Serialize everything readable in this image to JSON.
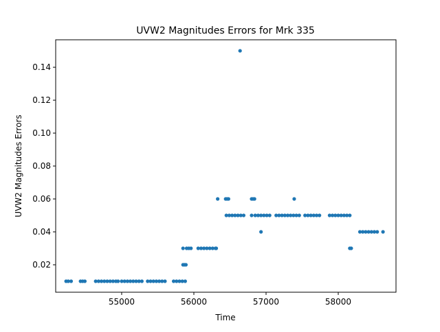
{
  "chart_data": {
    "type": "scatter",
    "title": "UVW2 Magnitudes Errors for Mrk 335",
    "x_label": "Time",
    "y_label": "UVW2 Magnitudes Errors",
    "color": "#1f77b4",
    "x": [
      54230,
      54260,
      54300,
      54430,
      54460,
      54490,
      54640,
      54680,
      54720,
      54760,
      54800,
      54840,
      54880,
      54920,
      54950,
      55000,
      55040,
      55080,
      55120,
      55160,
      55200,
      55240,
      55280,
      55360,
      55400,
      55440,
      55480,
      55520,
      55560,
      55600,
      55720,
      55760,
      55800,
      55840,
      55880,
      55850,
      55870,
      55890,
      55850,
      55900,
      55930,
      55960,
      56060,
      56100,
      56140,
      56180,
      56220,
      56260,
      56300,
      56310,
      56330,
      56440,
      56460,
      56480,
      56800,
      56820,
      56840,
      57390,
      56450,
      56490,
      56530,
      56570,
      56610,
      56650,
      56690,
      56800,
      56850,
      56890,
      56930,
      56970,
      57010,
      57050,
      57140,
      57180,
      57220,
      57260,
      57300,
      57340,
      57380,
      57420,
      57460,
      57540,
      57580,
      57620,
      57660,
      57700,
      57740,
      57880,
      57920,
      57960,
      58000,
      58040,
      58080,
      58120,
      58160,
      56930,
      58300,
      58340,
      58380,
      58420,
      58460,
      58500,
      58540,
      58620,
      58160,
      58180,
      56640
    ],
    "values": [
      0.01,
      0.01,
      0.01,
      0.01,
      0.01,
      0.01,
      0.01,
      0.01,
      0.01,
      0.01,
      0.01,
      0.01,
      0.01,
      0.01,
      0.01,
      0.01,
      0.01,
      0.01,
      0.01,
      0.01,
      0.01,
      0.01,
      0.01,
      0.01,
      0.01,
      0.01,
      0.01,
      0.01,
      0.01,
      0.01,
      0.01,
      0.01,
      0.01,
      0.01,
      0.01,
      0.02,
      0.02,
      0.02,
      0.03,
      0.03,
      0.03,
      0.03,
      0.03,
      0.03,
      0.03,
      0.03,
      0.03,
      0.03,
      0.03,
      0.03,
      0.06,
      0.06,
      0.06,
      0.06,
      0.06,
      0.06,
      0.06,
      0.06,
      0.05,
      0.05,
      0.05,
      0.05,
      0.05,
      0.05,
      0.05,
      0.05,
      0.05,
      0.05,
      0.05,
      0.05,
      0.05,
      0.05,
      0.05,
      0.05,
      0.05,
      0.05,
      0.05,
      0.05,
      0.05,
      0.05,
      0.05,
      0.05,
      0.05,
      0.05,
      0.05,
      0.05,
      0.05,
      0.05,
      0.05,
      0.05,
      0.05,
      0.05,
      0.05,
      0.05,
      0.05,
      0.04,
      0.04,
      0.04,
      0.04,
      0.04,
      0.04,
      0.04,
      0.04,
      0.04,
      0.03,
      0.03,
      0.15
    ],
    "xlim": [
      54086,
      58800
    ],
    "xticks": [
      55000,
      56000,
      57000,
      58000
    ],
    "ylim": [
      0.00333,
      0.1567
    ],
    "yticks": [
      0.02,
      0.04,
      0.06,
      0.08,
      0.1,
      0.12,
      0.14
    ]
  }
}
